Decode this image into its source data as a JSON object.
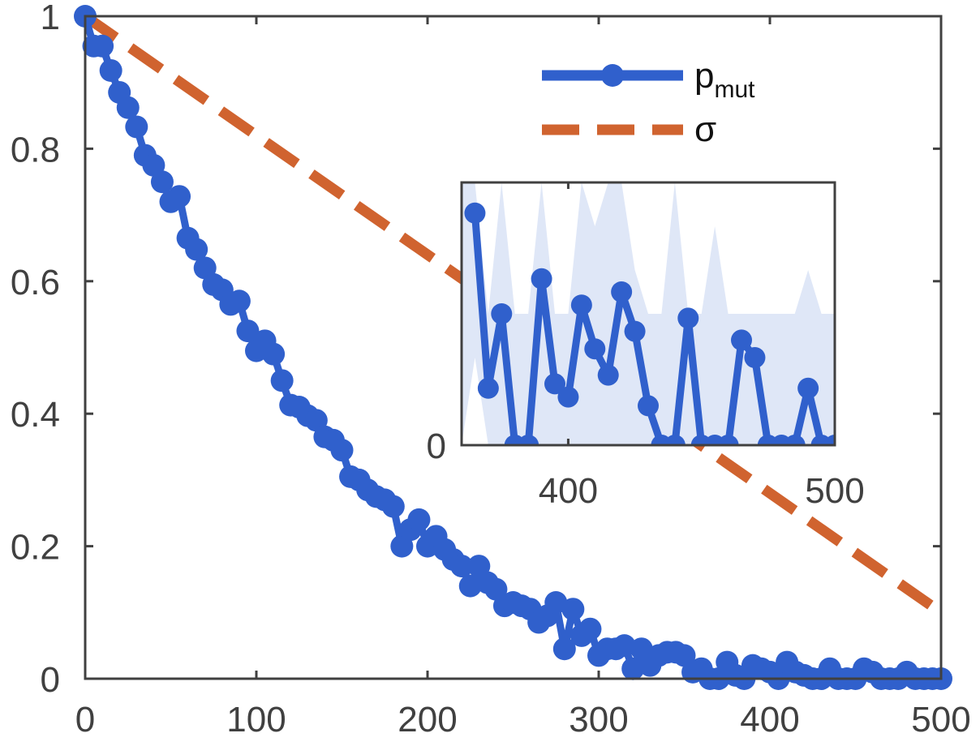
{
  "chart_data": [
    {
      "type": "line",
      "name": "main",
      "title": "",
      "xlabel": "",
      "ylabel": "",
      "xlim": [
        0,
        500
      ],
      "ylim": [
        0,
        1
      ],
      "xticks": [
        "0",
        "100",
        "200",
        "300",
        "400",
        "500"
      ],
      "yticks": [
        "0",
        "0.2",
        "0.4",
        "0.6",
        "0.8",
        "1"
      ],
      "legend": {
        "placement": "top-right",
        "entries": [
          {
            "label": "p",
            "subscript": "mut",
            "style": "solid-marker",
            "color": "#3060cc"
          },
          {
            "label": "σ",
            "subscript": "",
            "style": "dashed",
            "color": "#d0632f"
          }
        ]
      },
      "series": [
        {
          "name": "p_mut",
          "color": "#3060cc",
          "x": [
            0,
            5,
            10,
            15,
            20,
            25,
            30,
            35,
            40,
            45,
            50,
            55,
            60,
            65,
            70,
            75,
            80,
            85,
            90,
            95,
            100,
            105,
            110,
            115,
            120,
            125,
            130,
            135,
            140,
            145,
            150,
            155,
            160,
            165,
            170,
            175,
            180,
            185,
            190,
            195,
            200,
            205,
            210,
            215,
            220,
            225,
            230,
            235,
            240,
            245,
            250,
            255,
            260,
            265,
            270,
            275,
            280,
            285,
            290,
            295,
            300,
            305,
            310,
            315,
            320,
            325,
            330,
            335,
            340,
            345,
            350,
            355,
            360,
            365,
            370,
            375,
            380,
            385,
            390,
            395,
            400,
            405,
            410,
            415,
            420,
            425,
            430,
            435,
            440,
            445,
            450,
            455,
            460,
            465,
            470,
            475,
            480,
            485,
            490,
            495,
            500
          ],
          "y": [
            1.0,
            0.955,
            0.955,
            0.918,
            0.885,
            0.862,
            0.833,
            0.79,
            0.775,
            0.75,
            0.72,
            0.728,
            0.665,
            0.648,
            0.62,
            0.595,
            0.587,
            0.565,
            0.57,
            0.525,
            0.495,
            0.51,
            0.49,
            0.45,
            0.413,
            0.41,
            0.397,
            0.39,
            0.365,
            0.36,
            0.345,
            0.305,
            0.3,
            0.285,
            0.275,
            0.27,
            0.26,
            0.2,
            0.225,
            0.24,
            0.2,
            0.215,
            0.195,
            0.18,
            0.17,
            0.14,
            0.17,
            0.145,
            0.135,
            0.11,
            0.115,
            0.11,
            0.105,
            0.085,
            0.095,
            0.115,
            0.045,
            0.105,
            0.065,
            0.075,
            0.035,
            0.045,
            0.045,
            0.05,
            0.015,
            0.045,
            0.02,
            0.035,
            0.04,
            0.04,
            0.035,
            0.01,
            0.015,
            0.0,
            0.0,
            0.025,
            0.005,
            0.0,
            0.02,
            0.015,
            0.01,
            0.0,
            0.025,
            0.01,
            0.005,
            0.0,
            0.0,
            0.015,
            0.0,
            0.0,
            0.0,
            0.015,
            0.01,
            0.0,
            0.0,
            0.0,
            0.01,
            0.0,
            0.0,
            0.0,
            0.0
          ]
        },
        {
          "name": "σ",
          "color": "#d0632f",
          "style": "dashed",
          "x": [
            0,
            500
          ],
          "y": [
            1.0,
            0.1
          ]
        }
      ]
    },
    {
      "type": "line",
      "name": "inset",
      "title": "",
      "xlim": [
        360,
        500
      ],
      "ylim": [
        0,
        0.06
      ],
      "xticks": [
        "400",
        "500"
      ],
      "yticks": [
        "0"
      ],
      "series": [
        {
          "name": "p_mut",
          "color": "#3060cc",
          "x": [
            365,
            370,
            375,
            380,
            385,
            390,
            395,
            400,
            405,
            410,
            415,
            420,
            425,
            430,
            435,
            440,
            445,
            450,
            455,
            460,
            465,
            470,
            475,
            480,
            485,
            490,
            495,
            500
          ],
          "y": [
            0.053,
            0.013,
            0.03,
            0.0,
            0.0,
            0.038,
            0.014,
            0.011,
            0.032,
            0.022,
            0.016,
            0.035,
            0.026,
            0.009,
            0.0,
            0.0,
            0.029,
            0.0,
            0.0,
            0.0,
            0.024,
            0.02,
            0.0,
            0.0,
            0.0,
            0.013,
            0.0,
            0.0
          ]
        }
      ],
      "band": {
        "color": "#dfe7f7",
        "x": [
          360,
          365,
          370,
          375,
          380,
          385,
          390,
          395,
          400,
          405,
          410,
          415,
          420,
          425,
          430,
          435,
          440,
          445,
          450,
          455,
          460,
          465,
          470,
          475,
          480,
          485,
          490,
          495,
          500
        ],
        "upper": [
          0.06,
          0.06,
          0.03,
          0.06,
          0.03,
          0.03,
          0.06,
          0.03,
          0.03,
          0.06,
          0.05,
          0.06,
          0.06,
          0.04,
          0.03,
          0.03,
          0.06,
          0.03,
          0.03,
          0.05,
          0.03,
          0.03,
          0.03,
          0.03,
          0.03,
          0.03,
          0.04,
          0.03,
          0.03
        ],
        "lower": [
          0.0,
          0.02,
          0.0,
          0.0,
          0.0,
          0.0,
          0.0,
          0.0,
          0.0,
          0.0,
          0.0,
          0.0,
          0.0,
          0.0,
          0.0,
          0.0,
          0.0,
          0.0,
          0.0,
          0.0,
          0.0,
          0.0,
          0.0,
          0.0,
          0.0,
          0.0,
          0.0,
          0.0,
          0.0
        ]
      }
    }
  ]
}
